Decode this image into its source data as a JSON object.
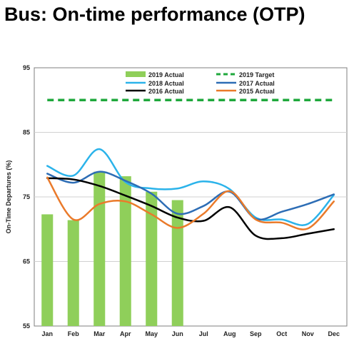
{
  "chart_data": {
    "type": "bar+line",
    "title": "Bus: On-time performance (OTP)",
    "ylabel": "On-Time Departures (%)",
    "xlabel": "",
    "ylim": [
      55,
      95
    ],
    "yticks": [
      55,
      65,
      75,
      85,
      95
    ],
    "grid": "horizontal",
    "legend_placement": "top",
    "categories": [
      "Jan",
      "Feb",
      "Mar",
      "Apr",
      "May",
      "Jun",
      "Jul",
      "Aug",
      "Sep",
      "Oct",
      "Nov",
      "Dec"
    ],
    "bars": {
      "name": "2019 Actual",
      "color": "#8fcf5a",
      "values": [
        72.3,
        71.4,
        78.9,
        78.2,
        75.8,
        74.5
      ]
    },
    "target": {
      "name": "2019 Target",
      "color": "#1fa83c",
      "value": 90
    },
    "series": [
      {
        "name": "2018 Actual",
        "color": "#2bb3ea",
        "values": [
          79.8,
          78.3,
          82.4,
          77.3,
          76.3,
          76.3,
          77.4,
          76.2,
          71.8,
          71.5,
          70.8,
          75.3
        ]
      },
      {
        "name": "2017 Actual",
        "color": "#2d6db5",
        "values": [
          78.6,
          77.2,
          78.9,
          77.5,
          75.5,
          72.4,
          73.6,
          75.8,
          71.6,
          72.7,
          73.9,
          75.4
        ]
      },
      {
        "name": "2016 Actual",
        "color": "#000000",
        "values": [
          77.9,
          77.7,
          76.7,
          75.2,
          73.6,
          71.8,
          71.3,
          73.4,
          69.0,
          68.6,
          69.3,
          70.0
        ]
      },
      {
        "name": "2015 Actual",
        "color": "#ea7a2a",
        "values": [
          78.0,
          71.5,
          73.9,
          74.3,
          72.3,
          70.2,
          72.4,
          75.9,
          71.5,
          71.0,
          70.1,
          74.3
        ]
      }
    ]
  }
}
